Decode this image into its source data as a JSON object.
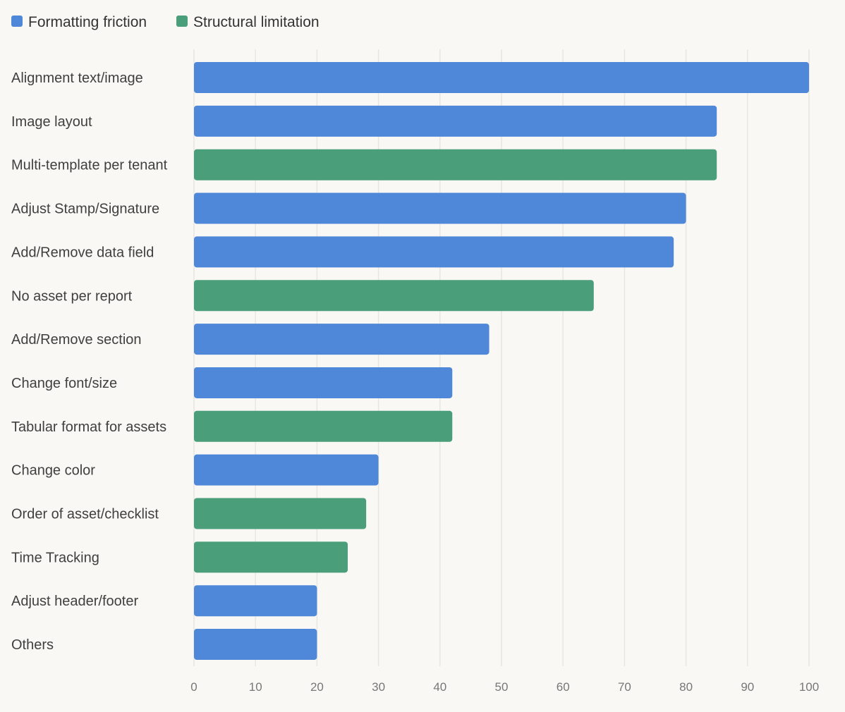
{
  "chart_data": {
    "type": "bar",
    "orientation": "horizontal",
    "title": "",
    "xlabel": "",
    "ylabel": "",
    "xlim": [
      0,
      100
    ],
    "xticks": [
      0,
      10,
      20,
      30,
      40,
      50,
      60,
      70,
      80,
      90,
      100
    ],
    "grid": true,
    "legend_position": "top-left",
    "legend": [
      {
        "key": "formatting",
        "name": "Formatting friction",
        "color": "#4f88d8"
      },
      {
        "key": "structural",
        "name": "Structural limitation",
        "color": "#4a9e7a"
      }
    ],
    "categories": [
      "Alignment text/image",
      "Image layout",
      "Multi-template per tenant",
      "Adjust Stamp/Signature",
      "Add/Remove data field",
      "No asset per report",
      "Add/Remove section",
      "Change font/size",
      "Tabular format for assets",
      "Change color",
      "Order of asset/checklist",
      "Time Tracking",
      "Adjust header/footer",
      "Others"
    ],
    "values": [
      100,
      85,
      85,
      80,
      78,
      65,
      48,
      42,
      42,
      30,
      28,
      25,
      20,
      20
    ],
    "groups": [
      "formatting",
      "formatting",
      "structural",
      "formatting",
      "formatting",
      "structural",
      "formatting",
      "formatting",
      "structural",
      "formatting",
      "structural",
      "structural",
      "formatting",
      "formatting"
    ]
  }
}
